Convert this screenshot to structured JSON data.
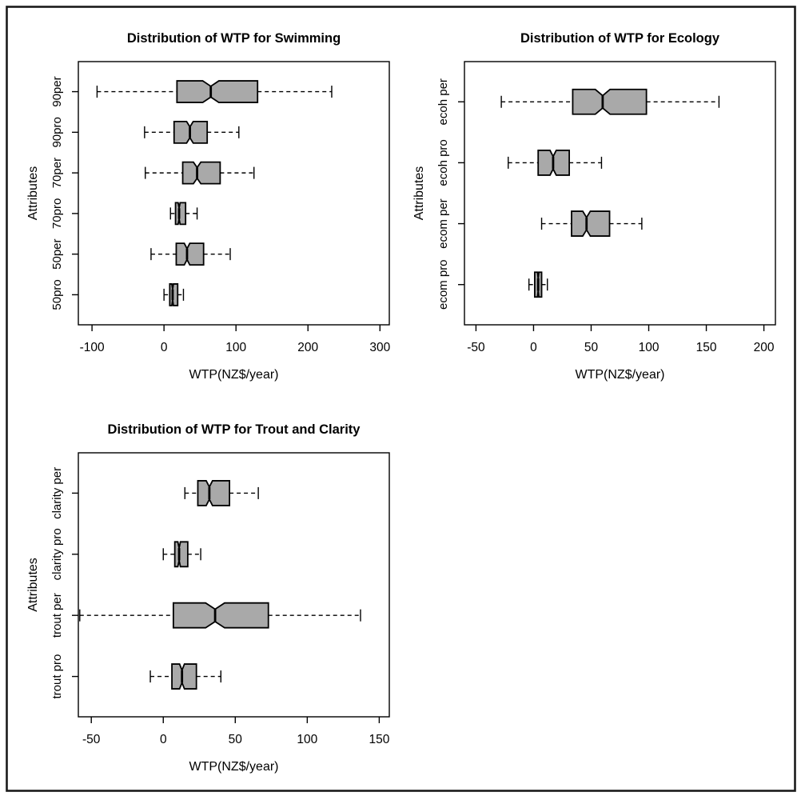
{
  "figure": {
    "background": "#ffffff",
    "border_color": "#1a1a1a",
    "box_fill": "#a9a9a9",
    "box_stroke": "#000000",
    "whisker_style": "dashed"
  },
  "chart_data": [
    {
      "type": "boxplot",
      "orientation": "horizontal",
      "notched": true,
      "title": "Distribution of WTP for Swimming",
      "xlabel": "WTP(NZ$/year)",
      "ylabel": "Attributes",
      "xticks": [
        -100,
        0,
        100,
        200,
        300
      ],
      "xlim": [
        -119,
        313
      ],
      "grid": false,
      "categories": [
        "90per",
        "90pro",
        "70per",
        "70pro",
        "50per",
        "50pro"
      ],
      "boxes": [
        {
          "label": "90per",
          "whisker_low": -93,
          "q1": 18,
          "median": 65,
          "q3": 130,
          "whisker_high": 233
        },
        {
          "label": "90pro",
          "whisker_low": -27,
          "q1": 14,
          "median": 36,
          "q3": 60,
          "whisker_high": 104
        },
        {
          "label": "70per",
          "whisker_low": -26,
          "q1": 26,
          "median": 46,
          "q3": 78,
          "whisker_high": 125
        },
        {
          "label": "70pro",
          "whisker_low": 9,
          "q1": 16,
          "median": 21,
          "q3": 30,
          "whisker_high": 46
        },
        {
          "label": "50per",
          "whisker_low": -18,
          "q1": 17,
          "median": 32,
          "q3": 55,
          "whisker_high": 92
        },
        {
          "label": "50pro",
          "whisker_low": 0,
          "q1": 8,
          "median": 12,
          "q3": 19,
          "whisker_high": 27
        }
      ]
    },
    {
      "type": "boxplot",
      "orientation": "horizontal",
      "notched": true,
      "title": "Distribution of WTP for Ecology",
      "xlabel": "WTP(NZ$/year)",
      "ylabel": "Attributes",
      "xticks": [
        -50,
        0,
        50,
        100,
        150,
        200
      ],
      "xlim": [
        -60,
        210
      ],
      "grid": false,
      "categories": [
        "ecoh per",
        "ecoh pro",
        "ecom per",
        "ecom pro"
      ],
      "boxes": [
        {
          "label": "ecoh per",
          "whisker_low": -28,
          "q1": 34,
          "median": 60,
          "q3": 98,
          "whisker_high": 161
        },
        {
          "label": "ecoh pro",
          "whisker_low": -22,
          "q1": 4,
          "median": 17,
          "q3": 31,
          "whisker_high": 59
        },
        {
          "label": "ecom per",
          "whisker_low": 7,
          "q1": 33,
          "median": 46,
          "q3": 66,
          "whisker_high": 94
        },
        {
          "label": "ecom pro",
          "whisker_low": -4,
          "q1": 1,
          "median": 4,
          "q3": 7,
          "whisker_high": 12
        }
      ]
    },
    {
      "type": "boxplot",
      "orientation": "horizontal",
      "notched": true,
      "title": "Distribution of WTP for Trout and Clarity",
      "xlabel": "WTP(NZ$/year)",
      "ylabel": "Attributes",
      "xticks": [
        -50,
        0,
        50,
        100,
        150
      ],
      "xlim": [
        -59,
        157
      ],
      "grid": false,
      "categories": [
        "clarity per",
        "clarity pro",
        "trout per",
        "trout pro"
      ],
      "boxes": [
        {
          "label": "clarity per",
          "whisker_low": 15,
          "q1": 24,
          "median": 32,
          "q3": 46,
          "whisker_high": 66
        },
        {
          "label": "clarity pro",
          "whisker_low": 0,
          "q1": 8,
          "median": 11,
          "q3": 17,
          "whisker_high": 26
        },
        {
          "label": "trout per",
          "whisker_low": -58,
          "q1": 7,
          "median": 36,
          "q3": 73,
          "whisker_high": 137
        },
        {
          "label": "trout pro",
          "whisker_low": -9,
          "q1": 6,
          "median": 13,
          "q3": 23,
          "whisker_high": 40
        }
      ]
    }
  ]
}
